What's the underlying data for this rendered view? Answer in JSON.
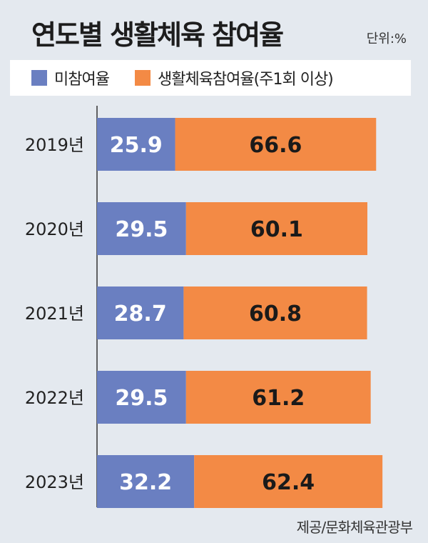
{
  "chart_data": {
    "type": "bar",
    "orientation": "horizontal",
    "stacked": true,
    "title": "연도별 생활체육 참여율",
    "unit": "단위:%",
    "categories": [
      "2019년",
      "2020년",
      "2021년",
      "2022년",
      "2023년"
    ],
    "series": [
      {
        "name": "미참여율",
        "values": [
          25.9,
          29.5,
          28.7,
          29.5,
          32.2
        ],
        "color": "#6a7fc1",
        "label_color": "#ffffff"
      },
      {
        "name": "생활체육참여율(주1회 이상)",
        "values": [
          66.6,
          60.1,
          60.8,
          61.2,
          62.4
        ],
        "color": "#f38a45",
        "label_color": "#1a1a1a"
      }
    ],
    "legend_position": "top",
    "grid": false,
    "source": "제공/문화체육관광부"
  },
  "colors": {
    "background": "#e4e9ef",
    "axis": "#333333"
  }
}
